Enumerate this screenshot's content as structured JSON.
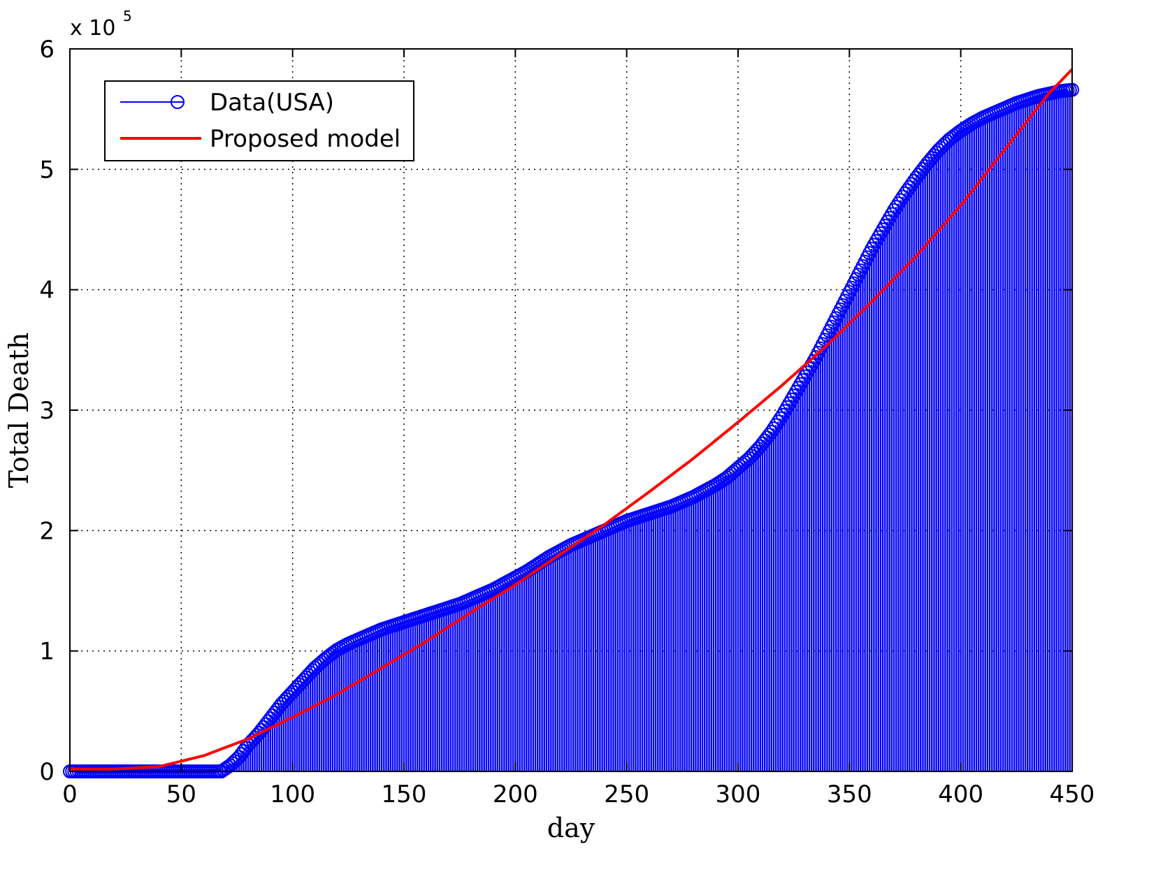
{
  "chart_data": {
    "type": "line",
    "title": "",
    "xlabel": "day",
    "ylabel": "Total Death",
    "y_multiplier_label": "x 10",
    "y_multiplier_exponent": "5",
    "xlim": [
      0,
      450
    ],
    "ylim": [
      0,
      6
    ],
    "x_ticks": [
      "0",
      "50",
      "100",
      "150",
      "200",
      "250",
      "300",
      "350",
      "400",
      "450"
    ],
    "y_ticks": [
      "0",
      "1",
      "2",
      "3",
      "4",
      "5",
      "6"
    ],
    "grid": true,
    "legend_position": "top-left",
    "series": [
      {
        "name": "Data(USA)",
        "style": "stem-circle",
        "color": "#0000ff",
        "x": [
          0,
          20,
          40,
          60,
          68,
          72,
          76,
          80,
          85,
          90,
          95,
          100,
          105,
          110,
          115,
          120,
          125,
          130,
          135,
          140,
          145,
          150,
          155,
          160,
          165,
          170,
          175,
          180,
          185,
          190,
          195,
          200,
          205,
          210,
          215,
          220,
          225,
          230,
          235,
          240,
          245,
          250,
          255,
          260,
          265,
          270,
          275,
          280,
          285,
          290,
          295,
          300,
          305,
          310,
          315,
          320,
          325,
          330,
          335,
          340,
          345,
          350,
          355,
          360,
          365,
          370,
          375,
          380,
          385,
          390,
          395,
          400,
          405,
          410,
          415,
          420,
          425,
          430,
          435,
          440,
          445,
          450
        ],
        "y": [
          0.0,
          0.0,
          0.0,
          0.0,
          0.0,
          0.05,
          0.12,
          0.22,
          0.32,
          0.44,
          0.56,
          0.66,
          0.76,
          0.86,
          0.94,
          1.01,
          1.06,
          1.1,
          1.14,
          1.18,
          1.21,
          1.24,
          1.27,
          1.3,
          1.33,
          1.36,
          1.39,
          1.43,
          1.47,
          1.51,
          1.56,
          1.61,
          1.66,
          1.72,
          1.78,
          1.83,
          1.88,
          1.92,
          1.96,
          2.0,
          2.04,
          2.08,
          2.11,
          2.14,
          2.17,
          2.2,
          2.24,
          2.28,
          2.33,
          2.38,
          2.44,
          2.52,
          2.6,
          2.7,
          2.82,
          2.96,
          3.12,
          3.28,
          3.44,
          3.62,
          3.8,
          3.98,
          4.16,
          4.34,
          4.5,
          4.66,
          4.8,
          4.93,
          5.05,
          5.16,
          5.25,
          5.32,
          5.38,
          5.43,
          5.47,
          5.51,
          5.55,
          5.58,
          5.61,
          5.63,
          5.65,
          5.66
        ]
      },
      {
        "name": "Proposed model",
        "style": "line",
        "color": "#ff0000",
        "x": [
          0,
          20,
          40,
          60,
          80,
          100,
          120,
          140,
          160,
          180,
          200,
          220,
          240,
          260,
          280,
          300,
          320,
          340,
          360,
          380,
          400,
          420,
          440,
          450
        ],
        "y": [
          0.02,
          0.02,
          0.04,
          0.13,
          0.27,
          0.45,
          0.64,
          0.86,
          1.08,
          1.32,
          1.55,
          1.8,
          2.05,
          2.32,
          2.6,
          2.9,
          3.21,
          3.54,
          3.9,
          4.28,
          4.7,
          5.17,
          5.64,
          5.83
        ]
      }
    ]
  }
}
